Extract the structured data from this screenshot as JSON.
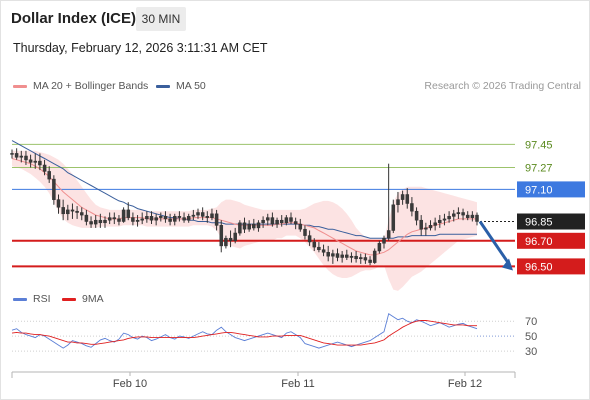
{
  "header": {
    "title": "Dollar Index (ICE)",
    "timeframe": "30 MIN",
    "datetime": "Thursday, February 12, 2026 3:11:31 AM CET",
    "copyright": "Research © 2026 Trading Central"
  },
  "legend": {
    "ma20": {
      "label": "MA 20 + Bollinger Bands",
      "color": "#f08f8f"
    },
    "ma50": {
      "label": "MA 50",
      "color": "#3a5f9c"
    },
    "rsi": {
      "label": "RSI",
      "color": "#5b7fd6"
    },
    "ma9": {
      "label": "9MA",
      "color": "#e02020"
    }
  },
  "chart_data": [
    {
      "type": "line",
      "name": "price",
      "ylim": [
        96.34,
        97.64
      ],
      "x_ticks": [
        {
          "label": "Feb 10",
          "pos": 130
        },
        {
          "label": "Feb 11",
          "pos": 298
        },
        {
          "label": "Feb 12",
          "pos": 465
        }
      ],
      "levels": [
        {
          "value": 97.45,
          "label": "97.45",
          "kind": "resistance_light",
          "color": "#9cc36b",
          "text_color": "#5a8a1e"
        },
        {
          "value": 97.27,
          "label": "97.27",
          "kind": "resistance_light",
          "color": "#9cc36b",
          "text_color": "#5a8a1e"
        },
        {
          "value": 97.1,
          "label": "97.10",
          "kind": "pivot",
          "color": "#3d79e0",
          "text_color": "#ffffff"
        },
        {
          "value": 96.85,
          "label": "96.85",
          "kind": "last",
          "color": "#222222",
          "text_color": "#ffffff"
        },
        {
          "value": 96.7,
          "label": "96.70",
          "kind": "support",
          "color": "#d41c1c",
          "text_color": "#ffffff"
        },
        {
          "value": 96.5,
          "label": "96.50",
          "kind": "support",
          "color": "#d41c1c",
          "text_color": "#ffffff"
        }
      ],
      "candles": [
        [
          97.38,
          97.41,
          97.34,
          97.38
        ],
        [
          97.38,
          97.42,
          97.33,
          97.35
        ],
        [
          97.35,
          97.4,
          97.31,
          97.36
        ],
        [
          97.36,
          97.4,
          97.29,
          97.33
        ],
        [
          97.33,
          97.37,
          97.27,
          97.31
        ],
        [
          97.31,
          97.38,
          97.26,
          97.32
        ],
        [
          97.32,
          97.38,
          97.25,
          97.29
        ],
        [
          97.29,
          97.33,
          97.21,
          97.24
        ],
        [
          97.24,
          97.28,
          97.15,
          97.18
        ],
        [
          97.18,
          97.21,
          96.98,
          97.02
        ],
        [
          97.02,
          97.06,
          96.91,
          96.96
        ],
        [
          96.96,
          97.02,
          96.86,
          96.91
        ],
        [
          96.91,
          96.98,
          96.86,
          96.94
        ],
        [
          96.94,
          96.99,
          96.87,
          96.93
        ],
        [
          96.93,
          96.97,
          96.87,
          96.92
        ],
        [
          96.92,
          96.96,
          96.86,
          96.9
        ],
        [
          96.9,
          96.94,
          96.82,
          96.85
        ],
        [
          96.85,
          96.89,
          96.8,
          96.83
        ],
        [
          96.83,
          96.9,
          96.8,
          96.86
        ],
        [
          96.86,
          96.91,
          96.8,
          96.84
        ],
        [
          96.84,
          96.89,
          96.8,
          96.86
        ],
        [
          96.86,
          96.92,
          96.83,
          96.88
        ],
        [
          96.88,
          96.92,
          96.83,
          96.87
        ],
        [
          96.87,
          96.9,
          96.82,
          96.85
        ],
        [
          96.85,
          96.96,
          96.84,
          96.94
        ],
        [
          96.94,
          97.0,
          96.86,
          96.88
        ],
        [
          96.88,
          96.92,
          96.82,
          96.85
        ],
        [
          96.85,
          96.9,
          96.81,
          96.86
        ],
        [
          96.86,
          96.92,
          96.83,
          96.87
        ],
        [
          96.87,
          96.93,
          96.84,
          96.89
        ],
        [
          96.89,
          96.93,
          96.83,
          96.86
        ],
        [
          96.86,
          96.91,
          96.82,
          96.88
        ],
        [
          96.88,
          96.92,
          96.85,
          96.89
        ],
        [
          96.89,
          96.93,
          96.84,
          96.87
        ],
        [
          96.87,
          96.91,
          96.82,
          96.85
        ],
        [
          96.85,
          96.91,
          96.82,
          96.89
        ],
        [
          96.89,
          96.93,
          96.85,
          96.88
        ],
        [
          96.88,
          96.92,
          96.84,
          96.86
        ],
        [
          96.86,
          96.91,
          96.84,
          96.89
        ],
        [
          96.89,
          96.94,
          96.86,
          96.9
        ],
        [
          96.9,
          96.95,
          96.87,
          96.92
        ],
        [
          96.92,
          96.96,
          96.86,
          96.89
        ],
        [
          96.89,
          96.93,
          96.84,
          96.88
        ],
        [
          96.88,
          96.95,
          96.86,
          96.91
        ],
        [
          96.91,
          96.94,
          96.78,
          96.82
        ],
        [
          96.82,
          96.86,
          96.61,
          96.66
        ],
        [
          96.66,
          96.74,
          96.64,
          96.72
        ],
        [
          96.72,
          96.78,
          96.65,
          96.7
        ],
        [
          96.7,
          96.8,
          96.68,
          96.76
        ],
        [
          96.76,
          96.86,
          96.74,
          96.84
        ],
        [
          96.84,
          96.88,
          96.76,
          96.79
        ],
        [
          96.79,
          96.86,
          96.77,
          96.83
        ],
        [
          96.83,
          96.87,
          96.78,
          96.8
        ],
        [
          96.8,
          96.86,
          96.77,
          96.84
        ],
        [
          96.84,
          96.89,
          96.8,
          96.86
        ],
        [
          96.86,
          96.91,
          96.82,
          96.88
        ],
        [
          96.88,
          96.92,
          96.81,
          96.83
        ],
        [
          96.83,
          96.88,
          96.8,
          96.86
        ],
        [
          96.86,
          96.9,
          96.81,
          96.84
        ],
        [
          96.84,
          96.9,
          96.82,
          96.88
        ],
        [
          96.88,
          96.92,
          96.83,
          96.85
        ],
        [
          96.85,
          96.88,
          96.79,
          96.83
        ],
        [
          96.83,
          96.87,
          96.77,
          96.79
        ],
        [
          96.79,
          96.82,
          96.71,
          96.74
        ],
        [
          96.74,
          96.78,
          96.66,
          96.69
        ],
        [
          96.69,
          96.72,
          96.62,
          96.65
        ],
        [
          96.65,
          96.69,
          96.61,
          96.63
        ],
        [
          96.63,
          96.67,
          96.58,
          96.61
        ],
        [
          96.61,
          96.66,
          96.54,
          96.58
        ],
        [
          96.58,
          96.63,
          96.52,
          96.6
        ],
        [
          96.6,
          96.64,
          96.54,
          96.57
        ],
        [
          96.57,
          96.62,
          96.53,
          96.59
        ],
        [
          96.59,
          96.63,
          96.55,
          96.57
        ],
        [
          96.57,
          96.61,
          96.53,
          96.58
        ],
        [
          96.58,
          96.62,
          96.53,
          96.56
        ],
        [
          96.56,
          96.6,
          96.52,
          96.57
        ],
        [
          96.57,
          96.6,
          96.52,
          96.55
        ],
        [
          96.55,
          96.58,
          96.51,
          96.53
        ],
        [
          96.53,
          96.64,
          96.52,
          96.62
        ],
        [
          96.62,
          96.7,
          96.6,
          96.68
        ],
        [
          96.68,
          96.74,
          96.64,
          96.72
        ],
        [
          96.72,
          97.3,
          96.7,
          96.78
        ],
        [
          96.78,
          97.02,
          96.76,
          96.98
        ],
        [
          96.98,
          97.08,
          96.92,
          97.02
        ],
        [
          97.02,
          97.09,
          96.98,
          97.06
        ],
        [
          97.06,
          97.11,
          96.95,
          96.99
        ],
        [
          96.99,
          97.04,
          96.89,
          96.93
        ],
        [
          96.93,
          96.96,
          96.82,
          96.86
        ],
        [
          96.86,
          96.9,
          96.74,
          96.79
        ],
        [
          96.79,
          96.84,
          96.74,
          96.8
        ],
        [
          96.8,
          96.86,
          96.78,
          96.82
        ],
        [
          96.82,
          96.88,
          96.78,
          96.84
        ],
        [
          96.84,
          96.9,
          96.8,
          96.86
        ],
        [
          96.86,
          96.91,
          96.82,
          96.87
        ],
        [
          96.87,
          96.93,
          96.84,
          96.89
        ],
        [
          96.89,
          96.94,
          96.85,
          96.91
        ],
        [
          96.91,
          96.96,
          96.87,
          96.92
        ],
        [
          96.92,
          96.95,
          96.86,
          96.9
        ],
        [
          96.9,
          96.93,
          96.86,
          96.88
        ],
        [
          96.88,
          96.93,
          96.85,
          96.9
        ],
        [
          96.9,
          96.92,
          96.82,
          96.85
        ]
      ],
      "ma20": [
        97.34,
        97.33,
        97.32,
        97.31,
        97.3,
        97.28,
        97.26,
        97.23,
        97.2,
        97.16,
        97.12,
        97.08,
        97.05,
        97.02,
        96.99,
        96.96,
        96.94,
        96.92,
        96.9,
        96.89,
        96.88,
        96.87,
        96.87,
        96.87,
        96.88,
        96.88,
        96.88,
        96.88,
        96.88,
        96.87,
        96.87,
        96.87,
        96.87,
        96.87,
        96.87,
        96.87,
        96.87,
        96.87,
        96.87,
        96.88,
        96.88,
        96.88,
        96.88,
        96.88,
        96.87,
        96.86,
        96.85,
        96.84,
        96.83,
        96.82,
        96.82,
        96.82,
        96.82,
        96.82,
        96.82,
        96.82,
        96.82,
        96.83,
        96.83,
        96.84,
        96.84,
        96.84,
        96.83,
        96.82,
        96.81,
        96.8,
        96.78,
        96.76,
        96.74,
        96.72,
        96.7,
        96.68,
        96.66,
        96.64,
        96.62,
        96.61,
        96.6,
        96.59,
        96.59,
        96.6,
        96.61,
        96.63,
        96.66,
        96.69,
        96.72,
        96.75,
        96.77,
        96.78,
        96.79,
        96.8,
        96.81,
        96.82,
        96.83,
        96.84,
        96.85,
        96.86,
        96.87,
        96.87,
        96.87,
        96.87,
        96.87
      ],
      "bb_upper": [
        97.4,
        97.4,
        97.4,
        97.4,
        97.4,
        97.4,
        97.39,
        97.38,
        97.37,
        97.35,
        97.33,
        97.3,
        97.26,
        97.22,
        97.17,
        97.12,
        97.07,
        97.02,
        96.98,
        96.96,
        96.95,
        96.94,
        96.94,
        96.94,
        96.94,
        96.94,
        96.94,
        96.94,
        96.94,
        96.93,
        96.93,
        96.93,
        96.93,
        96.93,
        96.93,
        96.93,
        96.93,
        96.93,
        96.93,
        96.94,
        96.94,
        96.94,
        96.94,
        96.95,
        96.96,
        97.0,
        97.02,
        97.02,
        97.01,
        97.0,
        96.98,
        96.97,
        96.96,
        96.95,
        96.94,
        96.94,
        96.94,
        96.94,
        96.94,
        96.94,
        96.94,
        96.94,
        96.94,
        96.95,
        96.97,
        96.99,
        97.0,
        97.01,
        97.01,
        97.0,
        96.98,
        96.95,
        96.91,
        96.86,
        96.8,
        96.76,
        96.73,
        96.71,
        96.7,
        96.7,
        96.71,
        96.86,
        97.0,
        97.07,
        97.1,
        97.12,
        97.12,
        97.12,
        97.12,
        97.11,
        97.1,
        97.09,
        97.08,
        97.07,
        97.06,
        97.05,
        97.04,
        97.03,
        97.02,
        97.01,
        97.0
      ],
      "bb_lower": [
        97.28,
        97.27,
        97.26,
        97.24,
        97.22,
        97.19,
        97.16,
        97.12,
        97.07,
        97.0,
        96.93,
        96.87,
        96.84,
        96.82,
        96.81,
        96.8,
        96.8,
        96.8,
        96.8,
        96.81,
        96.81,
        96.81,
        96.81,
        96.81,
        96.82,
        96.82,
        96.82,
        96.82,
        96.82,
        96.81,
        96.81,
        96.81,
        96.81,
        96.81,
        96.81,
        96.81,
        96.81,
        96.81,
        96.81,
        96.82,
        96.82,
        96.82,
        96.82,
        96.81,
        96.78,
        96.72,
        96.68,
        96.66,
        96.65,
        96.64,
        96.66,
        96.67,
        96.68,
        96.69,
        96.7,
        96.7,
        96.7,
        96.72,
        96.72,
        96.74,
        96.74,
        96.74,
        96.72,
        96.69,
        96.65,
        96.61,
        96.56,
        96.51,
        96.47,
        96.44,
        96.42,
        96.41,
        96.41,
        96.42,
        96.44,
        96.46,
        96.47,
        96.47,
        96.48,
        96.5,
        96.51,
        96.4,
        96.32,
        96.31,
        96.34,
        96.38,
        96.42,
        96.44,
        96.46,
        96.49,
        96.52,
        96.55,
        96.58,
        96.61,
        96.64,
        96.67,
        96.7,
        96.71,
        96.72,
        96.73,
        96.74
      ],
      "ma50": [
        97.48,
        97.46,
        97.44,
        97.42,
        97.4,
        97.38,
        97.36,
        97.34,
        97.32,
        97.3,
        97.28,
        97.26,
        97.23,
        97.21,
        97.19,
        97.17,
        97.15,
        97.13,
        97.11,
        97.09,
        97.07,
        97.05,
        97.03,
        97.01,
        97.0,
        96.98,
        96.97,
        96.95,
        96.94,
        96.93,
        96.92,
        96.91,
        96.9,
        96.89,
        96.88,
        96.88,
        96.87,
        96.87,
        96.86,
        96.86,
        96.85,
        96.85,
        96.85,
        96.84,
        96.84,
        96.84,
        96.83,
        96.83,
        96.83,
        96.83,
        96.83,
        96.83,
        96.83,
        96.83,
        96.83,
        96.83,
        96.83,
        96.83,
        96.83,
        96.83,
        96.83,
        96.83,
        96.83,
        96.82,
        96.82,
        96.81,
        96.81,
        96.8,
        96.79,
        96.79,
        96.78,
        96.77,
        96.76,
        96.75,
        96.74,
        96.74,
        96.73,
        96.72,
        96.72,
        96.72,
        96.72,
        96.72,
        96.72,
        96.73,
        96.73,
        96.73,
        96.74,
        96.74,
        96.74,
        96.74,
        96.74,
        96.74,
        96.75,
        96.75,
        96.75,
        96.75,
        96.75,
        96.75,
        96.75,
        96.75,
        96.75
      ],
      "projection": {
        "from": 96.85,
        "to": 96.5,
        "color": "#2a5fa8"
      }
    },
    {
      "type": "line",
      "name": "rsi",
      "y_ticks": [
        70,
        50,
        30
      ],
      "ylim": [
        10,
        85
      ],
      "rsi": [
        58,
        60,
        55,
        52,
        50,
        48,
        52,
        50,
        46,
        42,
        38,
        34,
        38,
        44,
        42,
        40,
        37,
        35,
        40,
        45,
        47,
        44,
        42,
        46,
        54,
        52,
        48,
        46,
        50,
        48,
        44,
        46,
        49,
        52,
        48,
        46,
        50,
        49,
        47,
        50,
        53,
        56,
        53,
        52,
        58,
        62,
        56,
        52,
        48,
        46,
        44,
        46,
        48,
        50,
        52,
        54,
        52,
        50,
        48,
        54,
        56,
        52,
        48,
        40,
        38,
        36,
        34,
        36,
        38,
        40,
        42,
        40,
        38,
        36,
        38,
        40,
        42,
        44,
        48,
        52,
        56,
        80,
        76,
        72,
        74,
        70,
        68,
        72,
        70,
        67,
        64,
        66,
        68,
        65,
        62,
        64,
        66,
        67,
        64,
        62,
        60
      ],
      "ma9": [
        54,
        55,
        54,
        54,
        53,
        52,
        52,
        51,
        50,
        48,
        46,
        44,
        42,
        42,
        41,
        41,
        40,
        39,
        39,
        40,
        41,
        42,
        43,
        44,
        45,
        47,
        48,
        49,
        49,
        49,
        48,
        48,
        48,
        48,
        48,
        48,
        48,
        48,
        48,
        48,
        49,
        50,
        51,
        52,
        53,
        54,
        55,
        55,
        54,
        53,
        52,
        51,
        50,
        49,
        49,
        49,
        50,
        50,
        50,
        51,
        51,
        51,
        51,
        49,
        47,
        45,
        43,
        41,
        40,
        39,
        38,
        38,
        38,
        38,
        38,
        38,
        39,
        40,
        41,
        43,
        45,
        50,
        54,
        58,
        62,
        65,
        68,
        70,
        71,
        71,
        70,
        69,
        68,
        67,
        66,
        65,
        65,
        65,
        64,
        64,
        64
      ]
    }
  ]
}
